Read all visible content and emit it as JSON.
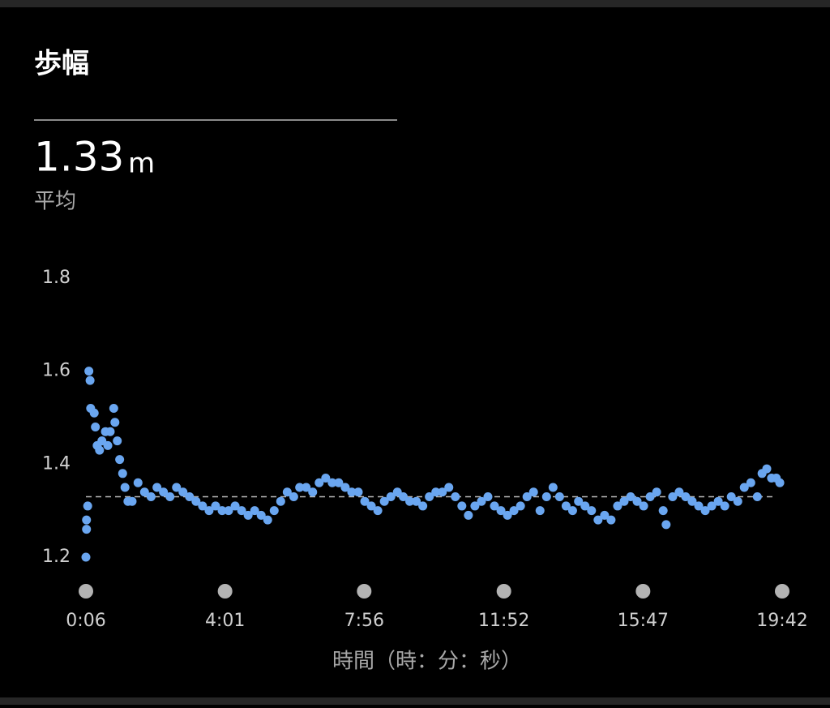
{
  "header": {
    "title": "歩幅",
    "value": 1.33,
    "unit": "m",
    "label": "平均"
  },
  "chart_data": {
    "type": "scatter",
    "x_label": "時間（時：分：秒）",
    "color": "#6aa6f0",
    "xlim": [
      6,
      1182
    ],
    "xticks": [
      {
        "value": 6,
        "label": "0:06"
      },
      {
        "value": 241,
        "label": "4:01"
      },
      {
        "value": 476,
        "label": "7:56"
      },
      {
        "value": 712,
        "label": "11:52"
      },
      {
        "value": 947,
        "label": "15:47"
      },
      {
        "value": 1182,
        "label": "19:42"
      }
    ],
    "ylim": [
      1.2,
      1.8
    ],
    "yticks": [
      1.2,
      1.4,
      1.6,
      1.8
    ],
    "x": [
      6,
      7,
      7,
      9,
      11,
      13,
      14,
      20,
      22,
      25,
      29,
      33,
      39,
      43,
      47,
      53,
      55,
      59,
      63,
      68,
      72,
      77,
      84,
      94,
      105,
      116,
      126,
      137,
      148,
      159,
      170,
      181,
      192,
      203,
      214,
      225,
      236,
      247,
      258,
      269,
      280,
      291,
      302,
      313,
      324,
      335,
      346,
      357,
      367,
      378,
      389,
      400,
      411,
      422,
      433,
      444,
      455,
      466,
      477,
      488,
      499,
      510,
      521,
      532,
      542,
      553,
      564,
      575,
      586,
      597,
      608,
      619,
      630,
      641,
      652,
      663,
      674,
      685,
      696,
      707,
      718,
      729,
      740,
      751,
      762,
      773,
      784,
      795,
      806,
      817,
      828,
      838,
      849,
      860,
      871,
      882,
      893,
      904,
      915,
      926,
      937,
      948,
      959,
      970,
      981,
      986,
      997,
      1008,
      1019,
      1030,
      1041,
      1052,
      1063,
      1074,
      1085,
      1096,
      1107,
      1118,
      1129,
      1140,
      1148,
      1156,
      1164,
      1172,
      1178
    ],
    "values": [
      1.2,
      1.26,
      1.28,
      1.31,
      1.6,
      1.58,
      1.52,
      1.51,
      1.48,
      1.44,
      1.43,
      1.45,
      1.47,
      1.44,
      1.47,
      1.52,
      1.49,
      1.45,
      1.41,
      1.38,
      1.35,
      1.32,
      1.32,
      1.36,
      1.34,
      1.33,
      1.35,
      1.34,
      1.33,
      1.35,
      1.34,
      1.33,
      1.32,
      1.31,
      1.3,
      1.31,
      1.3,
      1.3,
      1.31,
      1.3,
      1.29,
      1.3,
      1.29,
      1.28,
      1.3,
      1.32,
      1.34,
      1.33,
      1.35,
      1.35,
      1.34,
      1.36,
      1.37,
      1.36,
      1.36,
      1.35,
      1.34,
      1.34,
      1.32,
      1.31,
      1.3,
      1.32,
      1.33,
      1.34,
      1.33,
      1.32,
      1.32,
      1.31,
      1.33,
      1.34,
      1.34,
      1.35,
      1.33,
      1.31,
      1.29,
      1.31,
      1.32,
      1.33,
      1.31,
      1.3,
      1.29,
      1.3,
      1.31,
      1.33,
      1.34,
      1.3,
      1.33,
      1.35,
      1.33,
      1.31,
      1.3,
      1.32,
      1.31,
      1.3,
      1.28,
      1.29,
      1.28,
      1.31,
      1.32,
      1.33,
      1.32,
      1.31,
      1.33,
      1.34,
      1.3,
      1.27,
      1.33,
      1.34,
      1.33,
      1.32,
      1.31,
      1.3,
      1.31,
      1.32,
      1.31,
      1.33,
      1.32,
      1.35,
      1.36,
      1.33,
      1.38,
      1.39,
      1.37,
      1.37,
      1.36
    ]
  }
}
